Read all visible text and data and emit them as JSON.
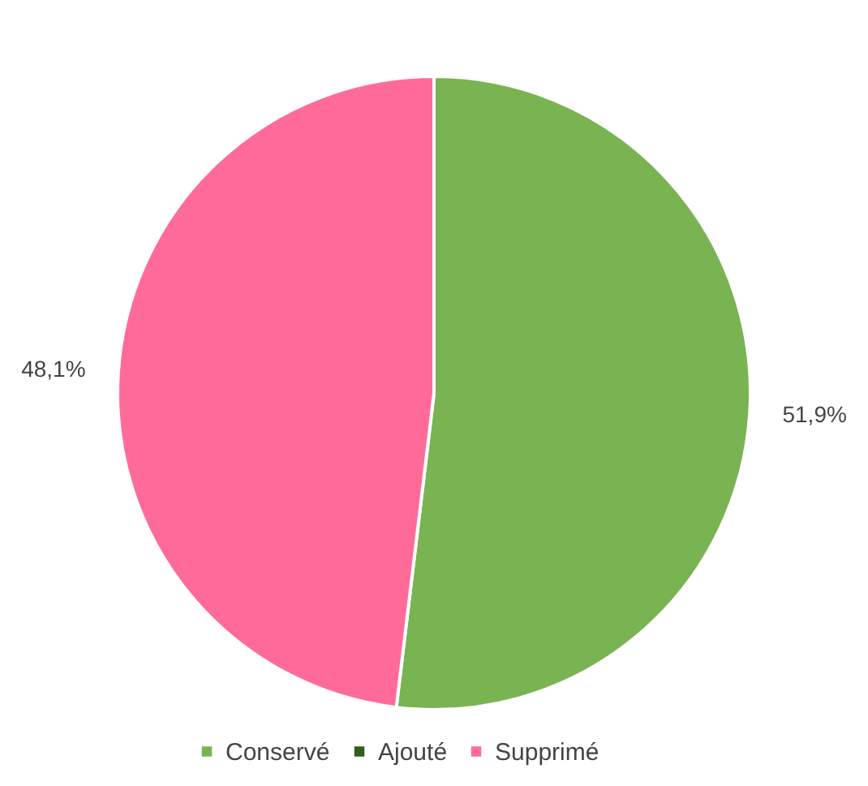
{
  "chart_data": {
    "type": "pie",
    "categories": [
      "Conservé",
      "Ajouté",
      "Supprimé"
    ],
    "values": [
      51.9,
      0,
      48.1
    ],
    "colors": [
      "#7ab351",
      "#2f5e1e",
      "#ff6b98"
    ],
    "value_labels": [
      "51,9%",
      null,
      "48,1%"
    ],
    "legend": "bottom"
  }
}
